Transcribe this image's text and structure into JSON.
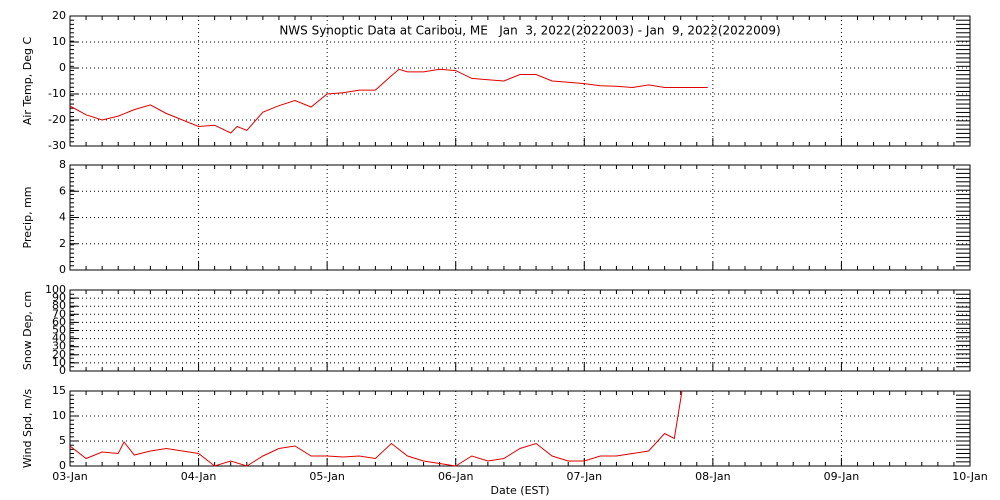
{
  "chart_data": [
    {
      "type": "line",
      "title": "NWS Synoptic Data at Caribou, ME   Jan  3, 2022(2022003) - Jan  9, 2022(2022009)",
      "y_label": "Air Temp, Deg C",
      "xlim": [
        0,
        7
      ],
      "xticks": [
        {
          "value": 0,
          "label": "03-Jan"
        },
        {
          "value": 1,
          "label": "04-Jan"
        },
        {
          "value": 2,
          "label": "05-Jan"
        },
        {
          "value": 3,
          "label": "06-Jan"
        },
        {
          "value": 4,
          "label": "07-Jan"
        },
        {
          "value": 5,
          "label": "08-Jan"
        },
        {
          "value": 6,
          "label": "09-Jan"
        },
        {
          "value": 7,
          "label": "10-Jan"
        }
      ],
      "ylim": [
        -30,
        20
      ],
      "yticks": [
        -30,
        -20,
        -10,
        0,
        10,
        20
      ],
      "grid": true,
      "x": [
        0,
        0.125,
        0.25,
        0.375,
        0.5,
        0.625,
        0.75,
        0.875,
        1,
        1.125,
        1.25,
        1.3,
        1.375,
        1.5,
        1.625,
        1.75,
        1.875,
        2,
        2.125,
        2.25,
        2.375,
        2.5,
        2.56,
        2.625,
        2.75,
        2.875,
        3,
        3.125,
        3.25,
        3.375,
        3.5,
        3.625,
        3.75,
        3.875,
        4,
        4.125,
        4.25,
        4.375,
        4.5,
        4.625,
        4.75,
        4.875,
        4.96
      ],
      "series": [
        {
          "name": "Air Temp",
          "color": "#e00000",
          "values": [
            -14.6,
            -18,
            -20,
            -18.5,
            -16,
            -14.2,
            -17.5,
            -20,
            -22.5,
            -22,
            -25,
            -22.5,
            -24,
            -17,
            -14.5,
            -12.5,
            -15,
            -10,
            -9.5,
            -8.5,
            -8.5,
            -3,
            -0.5,
            -1.5,
            -1.5,
            -0.5,
            -1,
            -4,
            -4.5,
            -5,
            -2.5,
            -2.5,
            -5,
            -5.5,
            -6,
            -6.8,
            -7,
            -7.5,
            -6.5,
            -7.5,
            -7.5,
            -7.5,
            -7.5
          ]
        }
      ]
    },
    {
      "type": "line",
      "y_label": "Precip, mm",
      "xlim": [
        0,
        7
      ],
      "xticks": [
        {
          "value": 0,
          "label": "03-Jan"
        },
        {
          "value": 1,
          "label": "04-Jan"
        },
        {
          "value": 2,
          "label": "05-Jan"
        },
        {
          "value": 3,
          "label": "06-Jan"
        },
        {
          "value": 4,
          "label": "07-Jan"
        },
        {
          "value": 5,
          "label": "08-Jan"
        },
        {
          "value": 6,
          "label": "09-Jan"
        },
        {
          "value": 7,
          "label": "10-Jan"
        }
      ],
      "ylim": [
        0,
        8
      ],
      "yticks": [
        0,
        2,
        4,
        6,
        8
      ],
      "grid": true
    },
    {
      "type": "line",
      "y_label": "Snow Dep, cm",
      "xlim": [
        0,
        7
      ],
      "xticks": [
        {
          "value": 0,
          "label": "03-Jan"
        },
        {
          "value": 1,
          "label": "04-Jan"
        },
        {
          "value": 2,
          "label": "05-Jan"
        },
        {
          "value": 3,
          "label": "06-Jan"
        },
        {
          "value": 4,
          "label": "07-Jan"
        },
        {
          "value": 5,
          "label": "08-Jan"
        },
        {
          "value": 6,
          "label": "09-Jan"
        },
        {
          "value": 7,
          "label": "10-Jan"
        }
      ],
      "ylim": [
        0,
        100
      ],
      "yticks": [
        0,
        10,
        20,
        30,
        40,
        50,
        60,
        70,
        80,
        90,
        100
      ],
      "grid": true
    },
    {
      "type": "line",
      "y_label": "Wind Spd, m/s",
      "x_label": "Date (EST)",
      "xlim": [
        0,
        7
      ],
      "xticks": [
        {
          "value": 0,
          "label": "03-Jan"
        },
        {
          "value": 1,
          "label": "04-Jan"
        },
        {
          "value": 2,
          "label": "05-Jan"
        },
        {
          "value": 3,
          "label": "06-Jan"
        },
        {
          "value": 4,
          "label": "07-Jan"
        },
        {
          "value": 5,
          "label": "08-Jan"
        },
        {
          "value": 6,
          "label": "09-Jan"
        },
        {
          "value": 7,
          "label": "10-Jan"
        }
      ],
      "ylim": [
        0,
        15
      ],
      "yticks": [
        0,
        5,
        10,
        15
      ],
      "grid": true,
      "x": [
        0,
        0.125,
        0.25,
        0.375,
        0.42,
        0.5,
        0.625,
        0.75,
        0.875,
        1,
        1.125,
        1.25,
        1.375,
        1.5,
        1.625,
        1.75,
        1.875,
        2,
        2.125,
        2.25,
        2.375,
        2.5,
        2.625,
        2.75,
        2.875,
        3,
        3.125,
        3.25,
        3.375,
        3.5,
        3.625,
        3.75,
        3.875,
        4,
        4.125,
        4.25,
        4.375,
        4.5,
        4.625,
        4.7,
        4.76
      ],
      "series": [
        {
          "name": "Wind Spd",
          "color": "#e00000",
          "values": [
            4,
            1.5,
            2.8,
            2.5,
            4.8,
            2.2,
            3,
            3.5,
            3,
            2.5,
            0,
            1,
            0,
            2,
            3.5,
            4,
            2,
            2,
            1.8,
            2,
            1.5,
            4.5,
            2,
            1,
            0.5,
            0,
            2,
            1,
            1.5,
            3.5,
            4.5,
            2,
            1,
            1,
            2,
            2,
            2.5,
            3,
            6.5,
            5.5,
            15
          ]
        }
      ]
    }
  ]
}
